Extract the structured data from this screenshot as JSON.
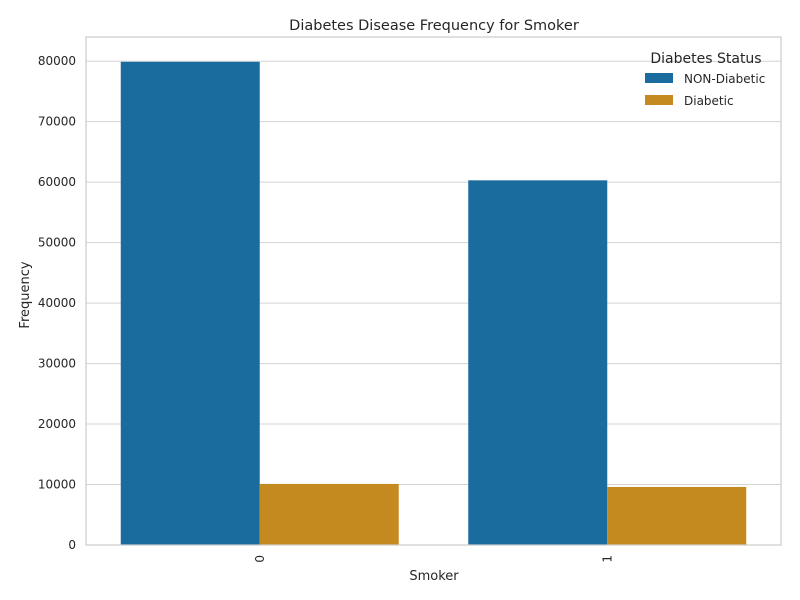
{
  "chart_data": {
    "type": "bar",
    "title": "Diabetes Disease Frequency for Smoker",
    "xlabel": "Smoker",
    "ylabel": "Frequency",
    "categories": [
      "0",
      "1"
    ],
    "series": [
      {
        "name": "NON-Diabetic",
        "values": [
          79900,
          60300
        ],
        "color": "#1a6c9e"
      },
      {
        "name": "Diabetic",
        "values": [
          10100,
          9600
        ],
        "color": "#c58a1f"
      }
    ],
    "ylim": [
      0,
      84000
    ],
    "yticks": [
      0,
      10000,
      20000,
      30000,
      40000,
      50000,
      60000,
      70000,
      80000
    ],
    "ytick_labels": [
      "0",
      "10000",
      "20000",
      "30000",
      "40000",
      "50000",
      "60000",
      "70000",
      "80000"
    ],
    "grid": true,
    "legend": {
      "title": "Diabetes Status",
      "placement": "top-right"
    },
    "xtick_rotation": 90
  }
}
